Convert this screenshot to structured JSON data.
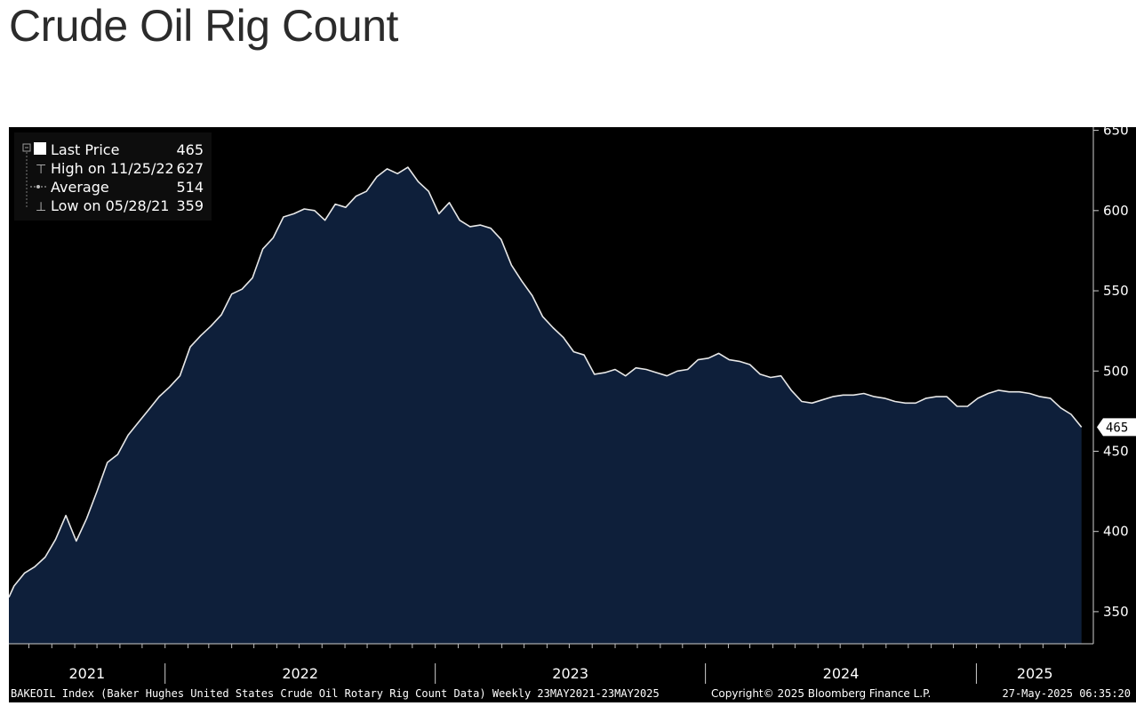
{
  "page": {
    "title": "Crude Oil Rig Count"
  },
  "legend": {
    "items": [
      {
        "label": "Last Price",
        "value": "465"
      },
      {
        "label": "High on 11/25/22",
        "value": "627"
      },
      {
        "label": "Average",
        "value": "514"
      },
      {
        "label": "Low on 05/28/21",
        "value": "359"
      }
    ]
  },
  "last_value_tag": "465",
  "footer": {
    "source": "BAKEOIL Index (Baker Hughes United States Crude Oil Rotary Rig Count Data)  Weekly 23MAY2021-23MAY2025",
    "copyright": "Copyright© 2025 Bloomberg Finance L.P.",
    "timestamp": "27-May-2025 06:35:20"
  },
  "colors": {
    "background": "#000000",
    "area_fill": "#0e1f3a",
    "line": "#e8e8e8",
    "text": "#ffffff"
  },
  "chart_data": {
    "type": "area",
    "title": "Crude Oil Rig Count",
    "x_axis_labels": [
      "2021",
      "2022",
      "2023",
      "2024",
      "2025"
    ],
    "y_ticks": [
      350,
      400,
      450,
      500,
      550,
      600,
      650
    ],
    "ylim": [
      330,
      652
    ],
    "xlim": [
      "2021-05-23",
      "2025-05-27"
    ],
    "y_axis_position": "right",
    "grid": false,
    "legend_position": "top-left",
    "series": [
      {
        "x": [
          "2021-05-28",
          "2021-06-11",
          "2021-06-25",
          "2021-07-09",
          "2021-07-23",
          "2021-08-06",
          "2021-08-20",
          "2021-09-03",
          "2021-09-17",
          "2021-10-01",
          "2021-10-15",
          "2021-10-29",
          "2021-11-12",
          "2021-11-26",
          "2021-12-10",
          "2021-12-24",
          "2022-01-07",
          "2022-01-21",
          "2022-02-04",
          "2022-02-18",
          "2022-03-04",
          "2022-03-18",
          "2022-04-01",
          "2022-04-15",
          "2022-04-29",
          "2022-05-13",
          "2022-05-27",
          "2022-06-10",
          "2022-06-24",
          "2022-07-08",
          "2022-07-22",
          "2022-08-05",
          "2022-08-19",
          "2022-09-02",
          "2022-09-16",
          "2022-09-30",
          "2022-10-14",
          "2022-10-28",
          "2022-11-11",
          "2022-11-25",
          "2022-12-09",
          "2022-12-23",
          "2023-01-06",
          "2023-01-20",
          "2023-02-03",
          "2023-02-17",
          "2023-03-03",
          "2023-03-17",
          "2023-03-31",
          "2023-04-14",
          "2023-04-28",
          "2023-05-12",
          "2023-05-26",
          "2023-06-09",
          "2023-06-23",
          "2023-07-07",
          "2023-07-21",
          "2023-08-04",
          "2023-08-18",
          "2023-09-01",
          "2023-09-15",
          "2023-09-29",
          "2023-10-13",
          "2023-10-27",
          "2023-11-10",
          "2023-11-24",
          "2023-12-08",
          "2023-12-22",
          "2024-01-05",
          "2024-01-19",
          "2024-02-02",
          "2024-02-16",
          "2024-03-01",
          "2024-03-15",
          "2024-03-29",
          "2024-04-12",
          "2024-04-26",
          "2024-05-10",
          "2024-05-24",
          "2024-06-07",
          "2024-06-21",
          "2024-07-05",
          "2024-07-19",
          "2024-08-02",
          "2024-08-16",
          "2024-08-30",
          "2024-09-13",
          "2024-09-27",
          "2024-10-11",
          "2024-10-25",
          "2024-11-08",
          "2024-11-22",
          "2024-12-06",
          "2024-12-20",
          "2025-01-03",
          "2025-01-17",
          "2025-01-31",
          "2025-02-14",
          "2025-02-28",
          "2025-03-14",
          "2025-03-28",
          "2025-04-11",
          "2025-04-25",
          "2025-05-09",
          "2025-05-23"
        ],
        "values": [
          359,
          366,
          374,
          378,
          384,
          395,
          410,
          394,
          408,
          425,
          443,
          448,
          460,
          468,
          476,
          484,
          490,
          497,
          515,
          522,
          528,
          535,
          548,
          551,
          558,
          576,
          583,
          596,
          598,
          601,
          600,
          594,
          604,
          602,
          609,
          612,
          621,
          626,
          623,
          627,
          618,
          612,
          598,
          605,
          594,
          590,
          591,
          589,
          582,
          566,
          556,
          547,
          534,
          527,
          521,
          512,
          510,
          498,
          499,
          501,
          497,
          502,
          501,
          499,
          497,
          500,
          501,
          507,
          508,
          511,
          507,
          506,
          504,
          498,
          496,
          497,
          488,
          481,
          480,
          482,
          484,
          485,
          485,
          486,
          484,
          483,
          481,
          480,
          480,
          483,
          484,
          484,
          478,
          478,
          483,
          486,
          488,
          487,
          487,
          486,
          484,
          483,
          477,
          473,
          465
        ]
      }
    ]
  }
}
